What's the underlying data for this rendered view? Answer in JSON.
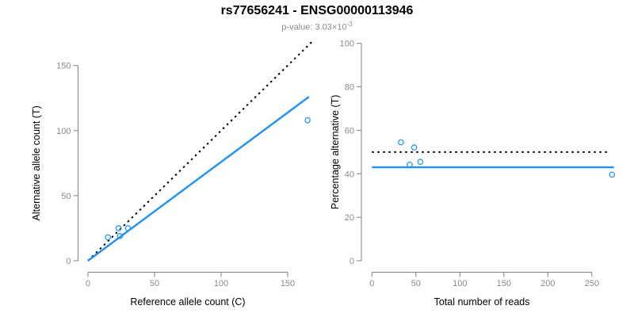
{
  "header": {
    "title": "rs77656241 - ENSG00000113946",
    "subtitle_prefix": "p-value: 3.03×10",
    "subtitle_exponent": "-3"
  },
  "colors": {
    "accent_blue": "#1E90FF",
    "axis_gray": "#828282",
    "tick_label_gray": "#8a8a8a",
    "axis_title_black": "#000000",
    "subtitle_gray": "#8a8a8a",
    "background": "#ffffff"
  },
  "chart_data": [
    {
      "type": "scatter",
      "panel": "allele-counts",
      "xlabel": "Reference allele count (C)",
      "ylabel": "Alternative allele count (T)",
      "x_ticks": [
        0,
        50,
        100,
        150
      ],
      "y_ticks": [
        0,
        50,
        100,
        150
      ],
      "xlim": [
        0,
        168
      ],
      "ylim": [
        0,
        168
      ],
      "grid": false,
      "legend": "none",
      "points": [
        [
          15,
          18
        ],
        [
          23,
          25
        ],
        [
          24,
          19
        ],
        [
          30,
          25
        ],
        [
          165,
          108
        ]
      ],
      "lines": [
        {
          "name": "identity-line",
          "style": "dotted",
          "color": "#000000",
          "width": 2,
          "from": [
            0,
            0
          ],
          "to": [
            168,
            168
          ]
        },
        {
          "name": "allelic-ratio-fit-line",
          "style": "solid",
          "color": "#1E90FF",
          "width": 2.4,
          "from": [
            0,
            0
          ],
          "to": [
            166,
            126
          ]
        }
      ]
    },
    {
      "type": "scatter",
      "panel": "percentage-alternative",
      "xlabel": "Total number of reads",
      "ylabel": "Percentage alternative (T)",
      "x_ticks": [
        0,
        50,
        100,
        150,
        200,
        250
      ],
      "y_ticks": [
        0,
        20,
        40,
        60,
        80,
        100
      ],
      "xlim": [
        0,
        275
      ],
      "ylim": [
        0,
        100
      ],
      "grid": false,
      "legend": "none",
      "points": [
        [
          33,
          54.5
        ],
        [
          43,
          44.2
        ],
        [
          48,
          52.1
        ],
        [
          55,
          45.5
        ],
        [
          273,
          39.6
        ]
      ],
      "lines": [
        {
          "name": "expected-50-percent-line",
          "style": "dotted",
          "color": "#000000",
          "width": 2,
          "from": [
            0,
            50
          ],
          "to": [
            271,
            50
          ]
        },
        {
          "name": "mean-percentage-line",
          "style": "solid",
          "color": "#1E90FF",
          "width": 2.4,
          "from": [
            0,
            43
          ],
          "to": [
            275,
            43
          ]
        }
      ]
    }
  ]
}
